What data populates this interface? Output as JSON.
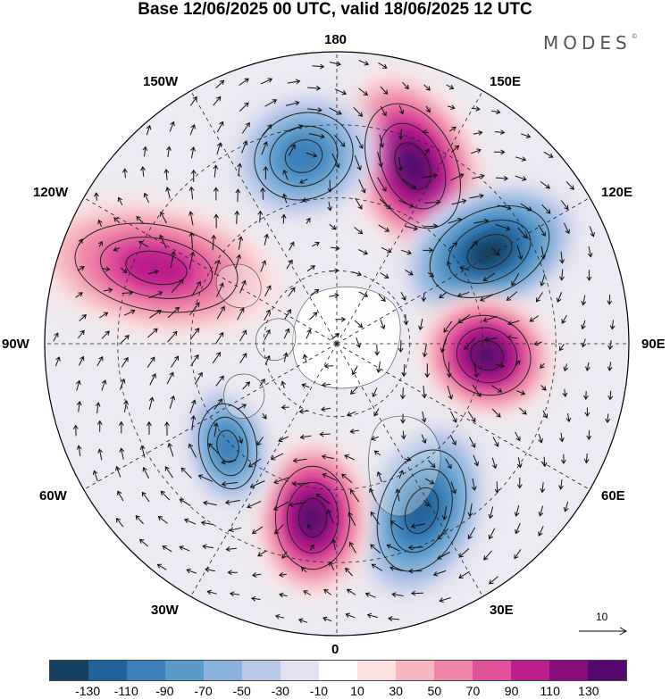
{
  "title": "Base 12/06/2025 00 UTC, valid 18/06/2025 12 UTC",
  "logo": {
    "text": "MODES",
    "mark": "©"
  },
  "longitude_labels": {
    "n180": "180",
    "e150": "150E",
    "e120": "120E",
    "e90": "90E",
    "e60": "60E",
    "e30": "30E",
    "z0": "0",
    "w30": "30W",
    "w60": "60W",
    "w90": "90W",
    "w120": "120W",
    "w150": "150W"
  },
  "reference_vector_label": "10",
  "colorbar": {
    "colors": [
      "#173f5f",
      "#20639b",
      "#3a7fb8",
      "#5b9bcb",
      "#8ab2dc",
      "#b9c8e6",
      "#e3e2f0",
      "#ffffff",
      "#fbe0df",
      "#f5b6bf",
      "#ee86a8",
      "#e0529a",
      "#bb1f8c",
      "#8a0d7d",
      "#55086e"
    ],
    "tick_labels": [
      "-130",
      "-110",
      "-90",
      "-70",
      "-50",
      "-30",
      "-10",
      "10",
      "30",
      "50",
      "70",
      "90",
      "110",
      "130"
    ]
  },
  "anomaly_centers": [
    {
      "name": "positive-east-siberia",
      "sign": "positive",
      "value": 130,
      "color": "#8a0d7d"
    },
    {
      "name": "negative-east-asia",
      "sign": "negative",
      "value": -130,
      "color": "#20639b"
    },
    {
      "name": "positive-central-siberia",
      "sign": "positive",
      "value": 130,
      "color": "#8a0d7d"
    },
    {
      "name": "negative-europe",
      "sign": "negative",
      "value": -90,
      "color": "#3a7fb8"
    },
    {
      "name": "positive-north-atlantic",
      "sign": "positive",
      "value": 110,
      "color": "#bb1f8c"
    },
    {
      "name": "negative-labrador",
      "sign": "negative",
      "value": -70,
      "color": "#5b9bcb"
    },
    {
      "name": "positive-north-america",
      "sign": "positive",
      "value": 70,
      "color": "#e0529a"
    },
    {
      "name": "negative-north-pacific",
      "sign": "negative",
      "value": -70,
      "color": "#5b9bcb"
    }
  ]
}
